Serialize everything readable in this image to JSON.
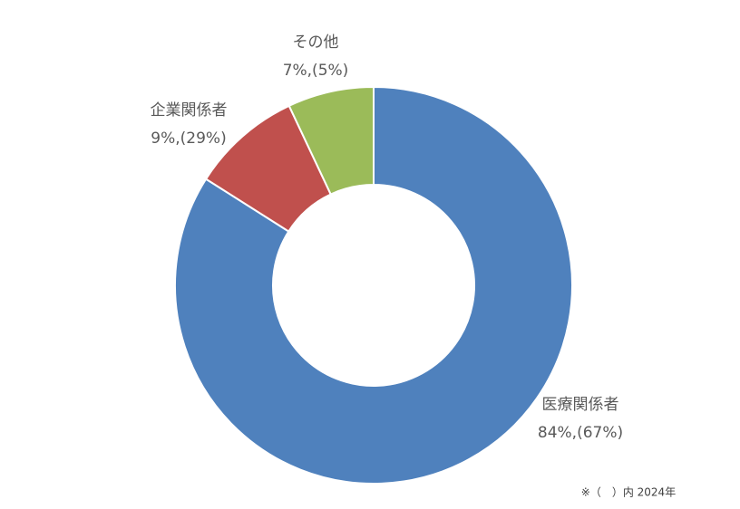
{
  "chart_data": {
    "type": "pie",
    "categories": [
      "医療関係者",
      "企業関係者",
      "その他"
    ],
    "values": [
      84,
      9,
      7
    ],
    "value_labels": [
      "84%,(67%)",
      "9%,(29%)",
      "7%,(5%)"
    ],
    "colors": [
      "#4f81bd",
      "#c0504d",
      "#9bbb59"
    ],
    "note": "※（　）内 2024年"
  }
}
